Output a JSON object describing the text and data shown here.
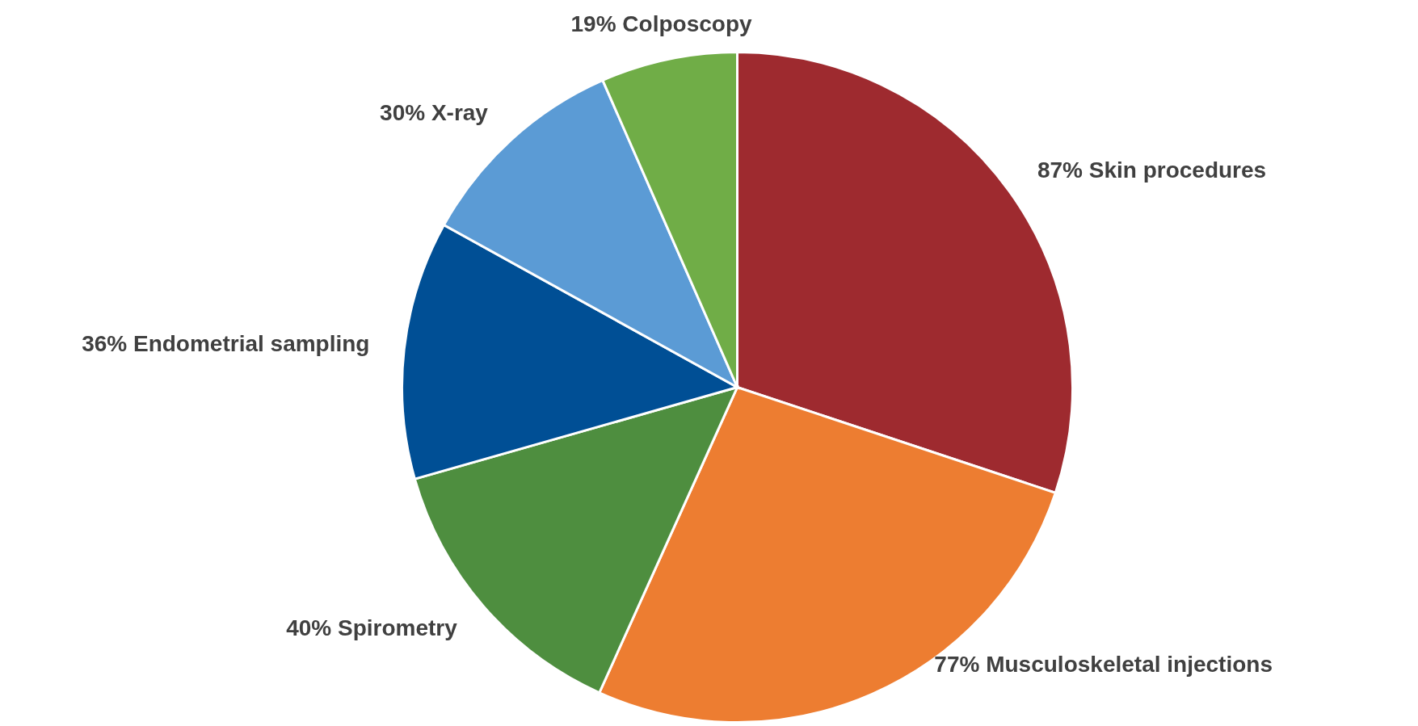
{
  "chart_data": {
    "type": "pie",
    "categories": [
      "Skin procedures",
      "Musculoskeletal injections",
      "Spirometry",
      "Endometrial sampling",
      "X-ray",
      "Colposcopy"
    ],
    "values": [
      87,
      77,
      40,
      36,
      30,
      19
    ],
    "value_labels": [
      "87%",
      "77%",
      "40%",
      "36%",
      "30%",
      "19%"
    ],
    "colors": [
      "#9e2a2f",
      "#ed7d31",
      "#4e8e3f",
      "#004f95",
      "#5b9bd5",
      "#70ad47"
    ]
  }
}
